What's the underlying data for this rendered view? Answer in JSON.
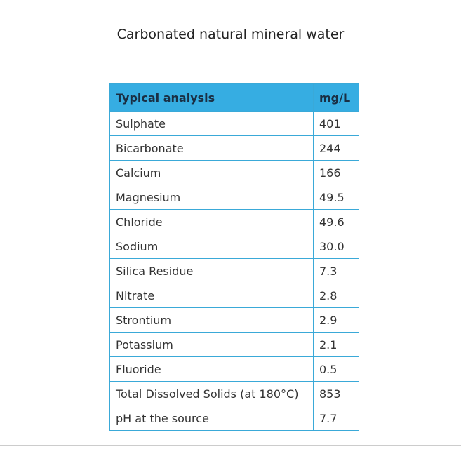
{
  "title": "Carbonated natural mineral water",
  "table": {
    "header": [
      "Typical analysis",
      "mg/L"
    ],
    "rows": [
      [
        "Sulphate",
        "401"
      ],
      [
        "Bicarbonate",
        "244"
      ],
      [
        "Calcium",
        "166"
      ],
      [
        "Magnesium",
        "49.5"
      ],
      [
        "Chloride",
        "49.6"
      ],
      [
        "Sodium",
        "30.0"
      ],
      [
        "Silica Residue",
        "7.3"
      ],
      [
        "Nitrate",
        "2.8"
      ],
      [
        "Strontium",
        "2.9"
      ],
      [
        "Potassium",
        "2.1"
      ],
      [
        "Fluoride",
        "0.5"
      ],
      [
        "Total Dissolved Solids (at 180°C)",
        "853"
      ],
      [
        "pH at the source",
        "7.7"
      ]
    ]
  }
}
